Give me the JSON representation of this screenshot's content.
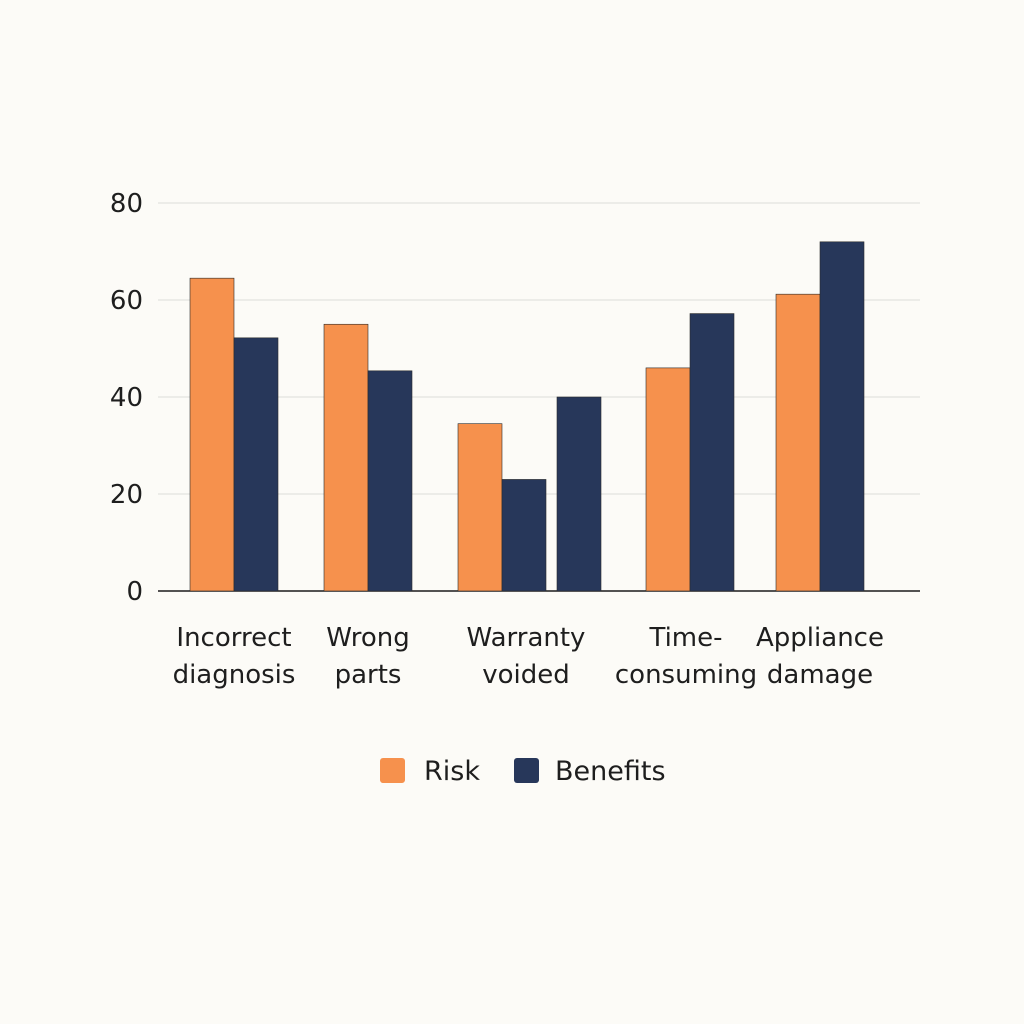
{
  "chart_data": {
    "type": "bar",
    "title": "",
    "xlabel": "",
    "ylabel": "",
    "ylim": [
      0,
      80
    ],
    "yticks": [
      0,
      20,
      40,
      60,
      80
    ],
    "grid": true,
    "legend_position": "bottom-center",
    "categories": [
      [
        "Incorrect",
        "diagnosis"
      ],
      [
        "Wrong",
        "parts"
      ],
      [
        "Warranty",
        "voided"
      ],
      [
        "Time-",
        "consuming"
      ],
      [
        "Appliance",
        "damage"
      ]
    ],
    "series": [
      {
        "name": "Risk",
        "color": "#f6914d",
        "values": [
          64.5,
          55,
          34.5,
          46,
          61.2
        ]
      },
      {
        "name": "Benefits",
        "color": "#27375a",
        "values": [
          52.2,
          45.4,
          23,
          57.2,
          72
        ]
      }
    ],
    "extra_marks": [
      {
        "series": "Benefits",
        "category_index": 2,
        "value": 40
      }
    ]
  }
}
